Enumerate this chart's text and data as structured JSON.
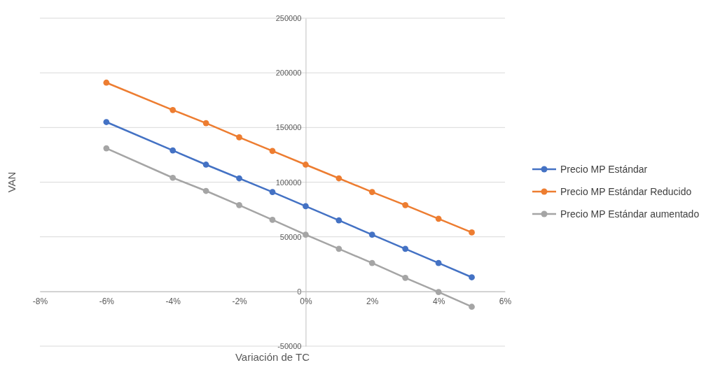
{
  "chart_data": {
    "type": "line",
    "xlabel": "Variación de TC",
    "ylabel": "VAN",
    "x": [
      -6,
      -4,
      -3,
      -2,
      -1,
      0,
      1,
      2,
      3,
      4,
      5
    ],
    "xlim": [
      -8,
      6
    ],
    "xticks": [
      {
        "value": -8,
        "label": "-8%"
      },
      {
        "value": -6,
        "label": "-6%"
      },
      {
        "value": -4,
        "label": "-4%"
      },
      {
        "value": -2,
        "label": "-2%"
      },
      {
        "value": 0,
        "label": "0%"
      },
      {
        "value": 2,
        "label": "2%"
      },
      {
        "value": 4,
        "label": "4%"
      },
      {
        "value": 6,
        "label": "6%"
      }
    ],
    "ylim": [
      -50000,
      250000
    ],
    "yticks": [
      -50000,
      0,
      50000,
      100000,
      150000,
      200000,
      250000
    ],
    "grid": "y",
    "legend": "right",
    "marker": "circle",
    "line_style": "solid",
    "series": [
      {
        "name": "Precio MP Estándar",
        "color": "#4472c4",
        "values": [
          155000,
          129000,
          116000,
          103500,
          91000,
          78000,
          65000,
          52000,
          39000,
          26000,
          13000
        ]
      },
      {
        "name": "Precio MP Estándar Reducido",
        "color": "#ed7d31",
        "values": [
          191000,
          166000,
          154000,
          141000,
          128500,
          116000,
          103500,
          91000,
          79000,
          66500,
          54000
        ]
      },
      {
        "name": "Precio MP Estándar aumentado",
        "color": "#a5a5a5",
        "values": [
          131000,
          104000,
          92000,
          79000,
          65500,
          52000,
          39000,
          26000,
          12500,
          -500,
          -14000
        ]
      }
    ]
  }
}
